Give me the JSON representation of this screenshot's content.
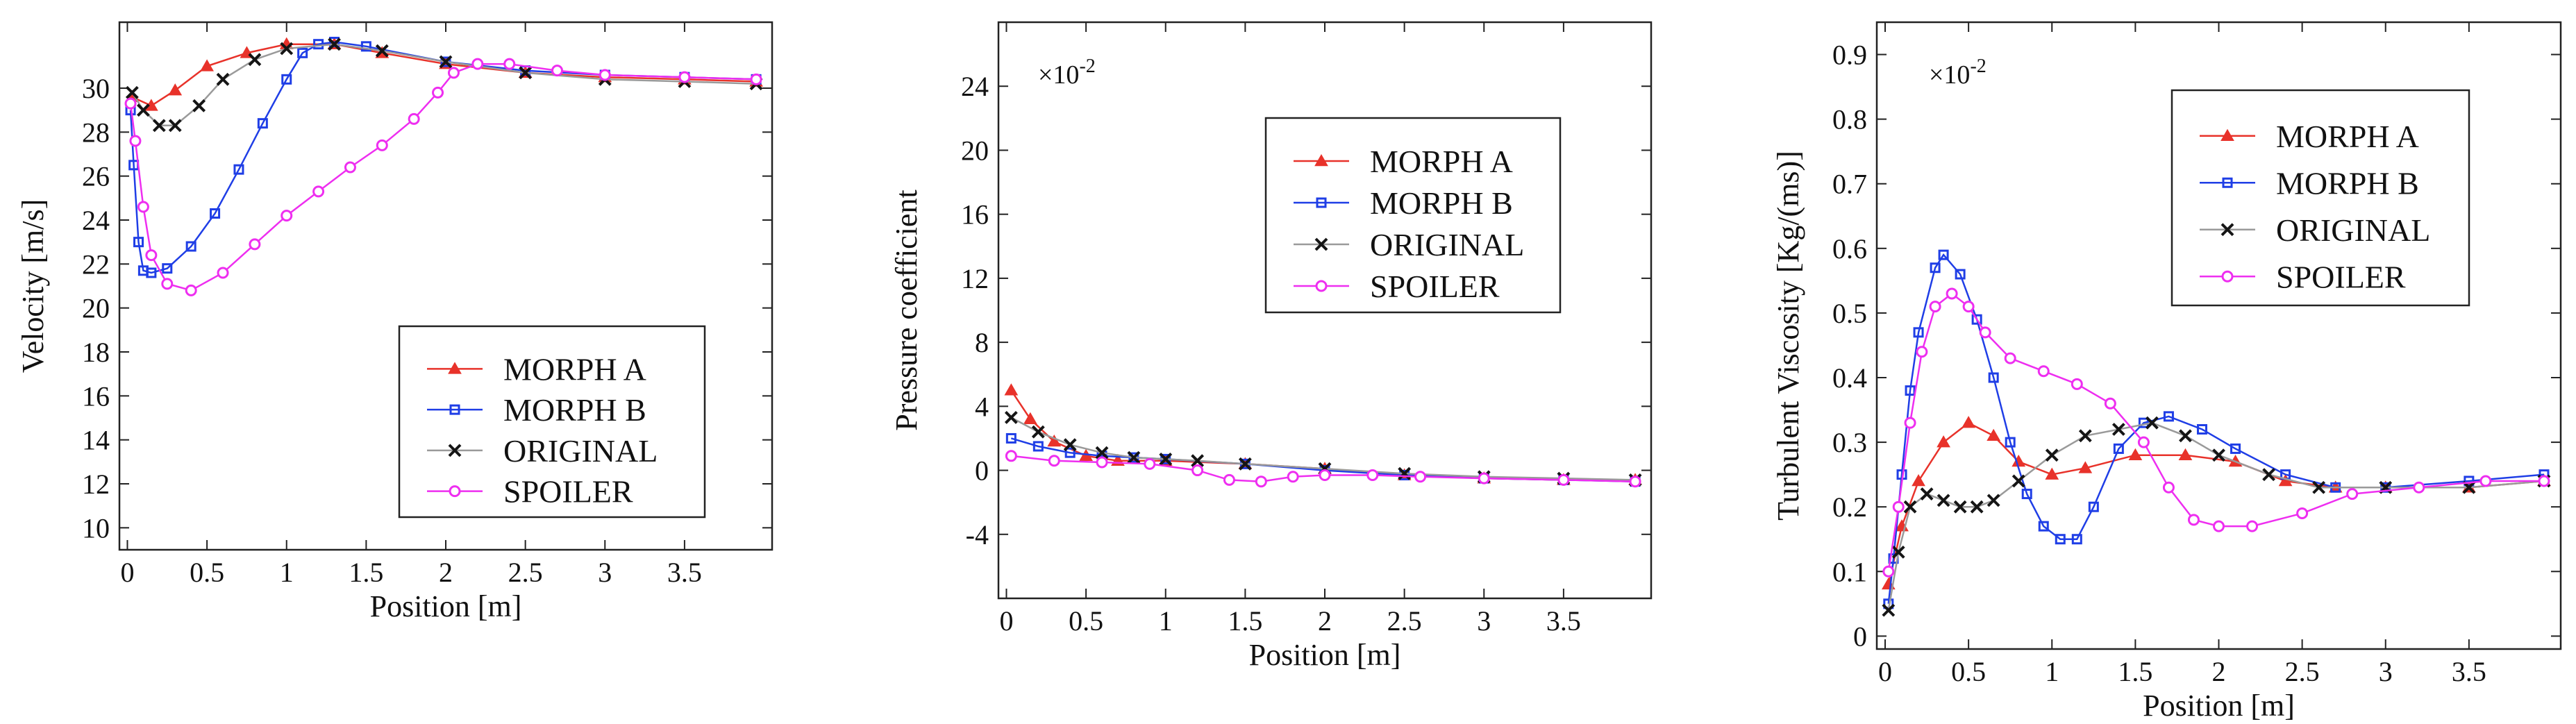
{
  "colors": {
    "MORPH A": "#e8322a",
    "MORPH B": "#1f3ee6",
    "ORIGINAL": "#151515",
    "SPOILER": "#ee2ef0",
    "ORIGINAL_line": "#9a9a9a"
  },
  "chart_data": [
    {
      "type": "line",
      "title": "",
      "xlabel": "Position [m]",
      "ylabel": "Velocity [m/s]",
      "xlim": [
        -0.05,
        4.05
      ],
      "ylim": [
        9,
        33
      ],
      "xticks": [
        0,
        0.5,
        1,
        1.5,
        2,
        2.5,
        3,
        3.5
      ],
      "xtick_labels": [
        "0",
        "0.5",
        "1",
        "1.5",
        "2",
        "2.5",
        "3",
        "3.5"
      ],
      "yticks": [
        10,
        12,
        14,
        16,
        18,
        20,
        22,
        24,
        26,
        28,
        30
      ],
      "ytick_labels": [
        "10",
        "12",
        "14",
        "16",
        "18",
        "20",
        "22",
        "24",
        "26",
        "28",
        "30"
      ],
      "multiplier": "",
      "legend": [
        "MORPH A",
        "MORPH B",
        "ORIGINAL",
        "SPOILER"
      ],
      "legend_position": "lower-right",
      "series": [
        {
          "name": "MORPH A",
          "marker": "triangle",
          "x": [
            0.03,
            0.15,
            0.3,
            0.5,
            0.75,
            1.0,
            1.3,
            1.6,
            2.0,
            2.5,
            3.0,
            3.5,
            3.95
          ],
          "y": [
            29.6,
            29.2,
            29.9,
            31.0,
            31.6,
            32.0,
            32.0,
            31.6,
            31.1,
            30.7,
            30.5,
            30.4,
            30.3
          ]
        },
        {
          "name": "MORPH B",
          "marker": "square",
          "x": [
            0.02,
            0.04,
            0.07,
            0.1,
            0.15,
            0.25,
            0.4,
            0.55,
            0.7,
            0.85,
            1.0,
            1.1,
            1.2,
            1.3,
            1.5,
            2.0,
            2.5,
            3.0,
            3.5,
            3.95
          ],
          "y": [
            29.0,
            26.5,
            23.0,
            21.7,
            21.6,
            21.8,
            22.8,
            24.3,
            26.3,
            28.4,
            30.4,
            31.6,
            32.0,
            32.1,
            31.9,
            31.2,
            30.8,
            30.6,
            30.5,
            30.4
          ]
        },
        {
          "name": "ORIGINAL",
          "marker": "x",
          "x": [
            0.03,
            0.1,
            0.2,
            0.3,
            0.45,
            0.6,
            0.8,
            1.0,
            1.3,
            1.6,
            2.0,
            2.5,
            3.0,
            3.5,
            3.95
          ],
          "y": [
            29.8,
            29.0,
            28.3,
            28.3,
            29.2,
            30.4,
            31.3,
            31.8,
            32.0,
            31.7,
            31.2,
            30.7,
            30.4,
            30.3,
            30.2
          ]
        },
        {
          "name": "SPOILER",
          "marker": "circle",
          "x": [
            0.02,
            0.05,
            0.1,
            0.15,
            0.25,
            0.4,
            0.6,
            0.8,
            1.0,
            1.2,
            1.4,
            1.6,
            1.8,
            1.95,
            2.05,
            2.2,
            2.4,
            2.7,
            3.0,
            3.5,
            3.95
          ],
          "y": [
            29.3,
            27.6,
            24.6,
            22.4,
            21.1,
            20.8,
            21.6,
            22.9,
            24.2,
            25.3,
            26.4,
            27.4,
            28.6,
            29.8,
            30.7,
            31.1,
            31.1,
            30.8,
            30.6,
            30.5,
            30.4
          ]
        }
      ]
    },
    {
      "type": "line",
      "title": "",
      "xlabel": "Position [m]",
      "ylabel": "Pressure coefficient",
      "xlim": [
        -0.05,
        4.05
      ],
      "ylim": [
        -8,
        28
      ],
      "xticks": [
        0,
        0.5,
        1,
        1.5,
        2,
        2.5,
        3,
        3.5
      ],
      "xtick_labels": [
        "0",
        "0.5",
        "1",
        "1.5",
        "2",
        "2.5",
        "3",
        "3.5"
      ],
      "yticks": [
        -4,
        0,
        4,
        8,
        12,
        16,
        20,
        24
      ],
      "ytick_labels": [
        "-4",
        "0",
        "4",
        "8",
        "12",
        "16",
        "20",
        "24"
      ],
      "multiplier": "×10",
      "multiplier_exp": "-2",
      "legend": [
        "MORPH A",
        "MORPH B",
        "ORIGINAL",
        "SPOILER"
      ],
      "legend_position": "upper-right",
      "series": [
        {
          "name": "MORPH A",
          "marker": "triangle",
          "x": [
            0.03,
            0.15,
            0.3,
            0.5,
            0.7,
            1.0,
            1.5,
            2.0,
            2.5,
            3.0,
            3.5,
            3.95
          ],
          "y": [
            5.0,
            3.2,
            1.8,
            0.9,
            0.6,
            0.6,
            0.4,
            0.1,
            -0.3,
            -0.5,
            -0.6,
            -0.6
          ]
        },
        {
          "name": "MORPH B",
          "marker": "square",
          "x": [
            0.03,
            0.2,
            0.4,
            0.6,
            0.8,
            1.0,
            1.5,
            2.0,
            2.5,
            3.0,
            3.5,
            3.95
          ],
          "y": [
            2.0,
            1.5,
            1.1,
            0.9,
            0.8,
            0.7,
            0.4,
            0.0,
            -0.3,
            -0.5,
            -0.6,
            -0.7
          ]
        },
        {
          "name": "ORIGINAL",
          "marker": "x",
          "x": [
            0.03,
            0.2,
            0.4,
            0.6,
            0.8,
            1.0,
            1.2,
            1.5,
            2.0,
            2.5,
            3.0,
            3.5,
            3.95
          ],
          "y": [
            3.3,
            2.4,
            1.6,
            1.1,
            0.8,
            0.7,
            0.6,
            0.4,
            0.1,
            -0.2,
            -0.4,
            -0.5,
            -0.6
          ]
        },
        {
          "name": "SPOILER",
          "marker": "circle",
          "x": [
            0.03,
            0.3,
            0.6,
            0.9,
            1.2,
            1.4,
            1.6,
            1.8,
            2.0,
            2.3,
            2.6,
            3.0,
            3.5,
            3.95
          ],
          "y": [
            0.9,
            0.6,
            0.5,
            0.4,
            0.0,
            -0.6,
            -0.7,
            -0.4,
            -0.3,
            -0.3,
            -0.4,
            -0.5,
            -0.6,
            -0.7
          ]
        }
      ]
    },
    {
      "type": "line",
      "title": "",
      "xlabel": "Position [m]",
      "ylabel": "Turbulent Viscosity [Kg/(ms)]",
      "xlim": [
        -0.05,
        4.05
      ],
      "ylim": [
        -0.02,
        0.95
      ],
      "xticks": [
        0,
        0.5,
        1,
        1.5,
        2,
        2.5,
        3,
        3.5
      ],
      "xtick_labels": [
        "0",
        "0.5",
        "1",
        "1.5",
        "2",
        "2.5",
        "3",
        "3.5"
      ],
      "yticks": [
        0,
        0.1,
        0.2,
        0.3,
        0.4,
        0.5,
        0.6,
        0.7,
        0.8,
        0.9
      ],
      "ytick_labels": [
        "0",
        "0.1",
        "0.2",
        "0.3",
        "0.4",
        "0.5",
        "0.6",
        "0.7",
        "0.8",
        "0.9"
      ],
      "multiplier": "×10",
      "multiplier_exp": "-2",
      "legend": [
        "MORPH A",
        "MORPH B",
        "ORIGINAL",
        "SPOILER"
      ],
      "legend_position": "upper-right",
      "series": [
        {
          "name": "MORPH A",
          "marker": "triangle",
          "x": [
            0.02,
            0.1,
            0.2,
            0.35,
            0.5,
            0.65,
            0.8,
            1.0,
            1.2,
            1.5,
            1.8,
            2.1,
            2.4,
            2.7,
            3.0,
            3.5,
            3.95
          ],
          "y": [
            0.08,
            0.17,
            0.24,
            0.3,
            0.33,
            0.31,
            0.27,
            0.25,
            0.26,
            0.28,
            0.28,
            0.27,
            0.24,
            0.23,
            0.23,
            0.23,
            0.24
          ]
        },
        {
          "name": "MORPH B",
          "marker": "square",
          "x": [
            0.02,
            0.05,
            0.1,
            0.15,
            0.2,
            0.3,
            0.35,
            0.45,
            0.55,
            0.65,
            0.75,
            0.85,
            0.95,
            1.05,
            1.15,
            1.25,
            1.4,
            1.55,
            1.7,
            1.9,
            2.1,
            2.4,
            2.7,
            3.0,
            3.5,
            3.95
          ],
          "y": [
            0.05,
            0.12,
            0.25,
            0.38,
            0.47,
            0.57,
            0.59,
            0.56,
            0.49,
            0.4,
            0.3,
            0.22,
            0.17,
            0.15,
            0.15,
            0.2,
            0.29,
            0.33,
            0.34,
            0.32,
            0.29,
            0.25,
            0.23,
            0.23,
            0.24,
            0.25
          ]
        },
        {
          "name": "ORIGINAL",
          "marker": "x",
          "x": [
            0.02,
            0.08,
            0.15,
            0.25,
            0.35,
            0.45,
            0.55,
            0.65,
            0.8,
            1.0,
            1.2,
            1.4,
            1.6,
            1.8,
            2.0,
            2.3,
            2.6,
            3.0,
            3.5,
            3.95
          ],
          "y": [
            0.04,
            0.13,
            0.2,
            0.22,
            0.21,
            0.2,
            0.2,
            0.21,
            0.24,
            0.28,
            0.31,
            0.32,
            0.33,
            0.31,
            0.28,
            0.25,
            0.23,
            0.23,
            0.23,
            0.24
          ]
        },
        {
          "name": "SPOILER",
          "marker": "circle",
          "x": [
            0.02,
            0.08,
            0.15,
            0.22,
            0.3,
            0.4,
            0.5,
            0.6,
            0.75,
            0.95,
            1.15,
            1.35,
            1.55,
            1.7,
            1.85,
            2.0,
            2.2,
            2.5,
            2.8,
            3.2,
            3.6,
            3.95
          ],
          "y": [
            0.1,
            0.2,
            0.33,
            0.44,
            0.51,
            0.53,
            0.51,
            0.47,
            0.43,
            0.41,
            0.39,
            0.36,
            0.3,
            0.23,
            0.18,
            0.17,
            0.17,
            0.19,
            0.22,
            0.23,
            0.24,
            0.24
          ]
        }
      ]
    }
  ]
}
